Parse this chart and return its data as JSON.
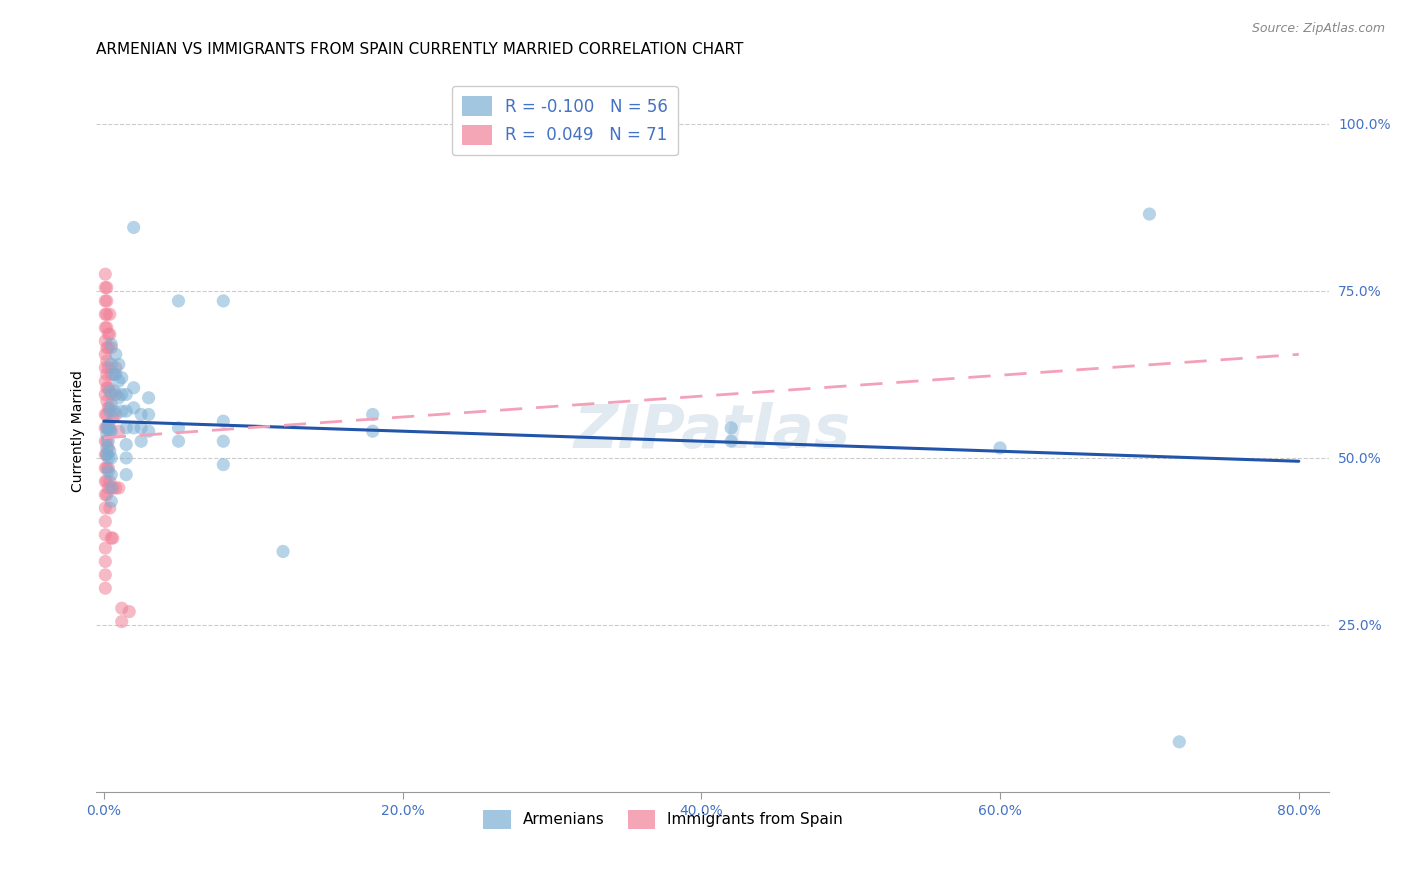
{
  "title": "ARMENIAN VS IMMIGRANTS FROM SPAIN CURRENTLY MARRIED CORRELATION CHART",
  "source": "Source: ZipAtlas.com",
  "ylabel": "Currently Married",
  "xlabel_ticks": [
    "0.0%",
    "20.0%",
    "40.0%",
    "60.0%",
    "80.0%"
  ],
  "xlabel_vals": [
    0.0,
    0.2,
    0.4,
    0.6,
    0.8
  ],
  "ylabel_ticks": [
    "25.0%",
    "50.0%",
    "75.0%",
    "100.0%"
  ],
  "ylabel_vals": [
    0.25,
    0.5,
    0.75,
    1.0
  ],
  "blue_color": "#7bafd4",
  "pink_color": "#f08098",
  "blue_line_color": "#2255aa",
  "pink_line_color": "#f4a0b8",
  "watermark": "ZIPatlas",
  "blue_points": [
    [
      0.002,
      0.535
    ],
    [
      0.002,
      0.515
    ],
    [
      0.002,
      0.545
    ],
    [
      0.002,
      0.505
    ],
    [
      0.003,
      0.55
    ],
    [
      0.003,
      0.525
    ],
    [
      0.003,
      0.5
    ],
    [
      0.003,
      0.48
    ],
    [
      0.004,
      0.6
    ],
    [
      0.004,
      0.57
    ],
    [
      0.004,
      0.54
    ],
    [
      0.004,
      0.51
    ],
    [
      0.005,
      0.67
    ],
    [
      0.005,
      0.64
    ],
    [
      0.005,
      0.58
    ],
    [
      0.005,
      0.54
    ],
    [
      0.005,
      0.5
    ],
    [
      0.005,
      0.475
    ],
    [
      0.005,
      0.455
    ],
    [
      0.005,
      0.435
    ],
    [
      0.007,
      0.625
    ],
    [
      0.007,
      0.6
    ],
    [
      0.007,
      0.57
    ],
    [
      0.008,
      0.655
    ],
    [
      0.008,
      0.625
    ],
    [
      0.01,
      0.64
    ],
    [
      0.01,
      0.615
    ],
    [
      0.01,
      0.59
    ],
    [
      0.012,
      0.62
    ],
    [
      0.012,
      0.595
    ],
    [
      0.012,
      0.57
    ],
    [
      0.015,
      0.595
    ],
    [
      0.015,
      0.57
    ],
    [
      0.015,
      0.545
    ],
    [
      0.015,
      0.52
    ],
    [
      0.015,
      0.5
    ],
    [
      0.015,
      0.475
    ],
    [
      0.02,
      0.845
    ],
    [
      0.02,
      0.605
    ],
    [
      0.02,
      0.575
    ],
    [
      0.02,
      0.545
    ],
    [
      0.025,
      0.565
    ],
    [
      0.025,
      0.545
    ],
    [
      0.025,
      0.525
    ],
    [
      0.03,
      0.59
    ],
    [
      0.03,
      0.565
    ],
    [
      0.03,
      0.54
    ],
    [
      0.05,
      0.735
    ],
    [
      0.05,
      0.545
    ],
    [
      0.05,
      0.525
    ],
    [
      0.08,
      0.735
    ],
    [
      0.08,
      0.555
    ],
    [
      0.08,
      0.525
    ],
    [
      0.08,
      0.49
    ],
    [
      0.12,
      0.36
    ],
    [
      0.18,
      0.565
    ],
    [
      0.18,
      0.54
    ],
    [
      0.42,
      0.545
    ],
    [
      0.42,
      0.525
    ],
    [
      0.6,
      0.515
    ],
    [
      0.7,
      0.865
    ],
    [
      0.72,
      0.075
    ]
  ],
  "pink_points": [
    [
      0.001,
      0.775
    ],
    [
      0.001,
      0.755
    ],
    [
      0.001,
      0.735
    ],
    [
      0.001,
      0.715
    ],
    [
      0.001,
      0.695
    ],
    [
      0.001,
      0.675
    ],
    [
      0.001,
      0.655
    ],
    [
      0.001,
      0.635
    ],
    [
      0.001,
      0.615
    ],
    [
      0.001,
      0.595
    ],
    [
      0.001,
      0.565
    ],
    [
      0.001,
      0.545
    ],
    [
      0.001,
      0.525
    ],
    [
      0.001,
      0.505
    ],
    [
      0.001,
      0.485
    ],
    [
      0.001,
      0.465
    ],
    [
      0.001,
      0.445
    ],
    [
      0.001,
      0.425
    ],
    [
      0.001,
      0.405
    ],
    [
      0.001,
      0.385
    ],
    [
      0.001,
      0.365
    ],
    [
      0.001,
      0.345
    ],
    [
      0.001,
      0.325
    ],
    [
      0.001,
      0.305
    ],
    [
      0.002,
      0.755
    ],
    [
      0.002,
      0.735
    ],
    [
      0.002,
      0.715
    ],
    [
      0.002,
      0.695
    ],
    [
      0.002,
      0.665
    ],
    [
      0.002,
      0.645
    ],
    [
      0.002,
      0.625
    ],
    [
      0.002,
      0.605
    ],
    [
      0.002,
      0.585
    ],
    [
      0.002,
      0.565
    ],
    [
      0.002,
      0.545
    ],
    [
      0.002,
      0.525
    ],
    [
      0.002,
      0.505
    ],
    [
      0.002,
      0.485
    ],
    [
      0.002,
      0.465
    ],
    [
      0.002,
      0.445
    ],
    [
      0.003,
      0.685
    ],
    [
      0.003,
      0.665
    ],
    [
      0.003,
      0.635
    ],
    [
      0.003,
      0.605
    ],
    [
      0.003,
      0.575
    ],
    [
      0.003,
      0.545
    ],
    [
      0.003,
      0.515
    ],
    [
      0.003,
      0.485
    ],
    [
      0.003,
      0.455
    ],
    [
      0.004,
      0.715
    ],
    [
      0.004,
      0.685
    ],
    [
      0.004,
      0.575
    ],
    [
      0.004,
      0.545
    ],
    [
      0.004,
      0.465
    ],
    [
      0.004,
      0.425
    ],
    [
      0.005,
      0.665
    ],
    [
      0.005,
      0.625
    ],
    [
      0.005,
      0.595
    ],
    [
      0.005,
      0.38
    ],
    [
      0.006,
      0.56
    ],
    [
      0.006,
      0.455
    ],
    [
      0.006,
      0.38
    ],
    [
      0.008,
      0.635
    ],
    [
      0.008,
      0.595
    ],
    [
      0.008,
      0.565
    ],
    [
      0.008,
      0.455
    ],
    [
      0.01,
      0.54
    ],
    [
      0.01,
      0.455
    ],
    [
      0.012,
      0.275
    ],
    [
      0.012,
      0.255
    ],
    [
      0.017,
      0.27
    ]
  ],
  "xlim": [
    -0.005,
    0.82
  ],
  "ylim": [
    0.0,
    1.08
  ],
  "grid_color": "#cccccc",
  "background_color": "#ffffff",
  "title_fontsize": 11,
  "axis_label_fontsize": 10,
  "tick_fontsize": 10,
  "marker_size": 90,
  "blue_line_x": [
    0.0,
    0.8
  ],
  "blue_line_y": [
    0.555,
    0.495
  ],
  "pink_line_x": [
    0.0,
    0.8
  ],
  "pink_line_y": [
    0.53,
    0.655
  ]
}
